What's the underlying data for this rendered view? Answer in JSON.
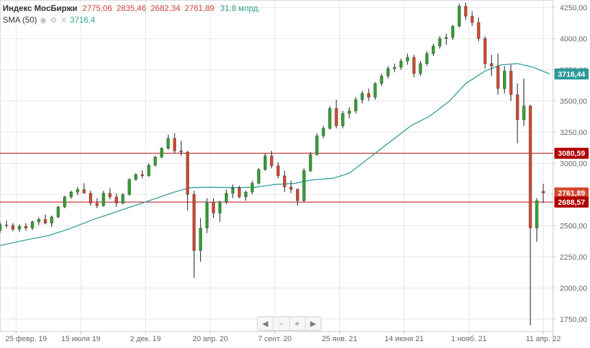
{
  "legend": {
    "title": "Индекс МосБиржи",
    "open": "2775,06",
    "high": "2835,46",
    "low": "2682,34",
    "close": "2761,89",
    "volume": "31,8 млрд.",
    "sma_label": "SMA (50)",
    "sma_value": "3716,4",
    "tool_icons": [
      "eye-icon",
      "gear-icon",
      "close-icon"
    ]
  },
  "navigator": {
    "buttons": [
      {
        "name": "scroll-left-button",
        "glyph": "◀"
      },
      {
        "name": "zoom-out-button",
        "glyph": "–"
      },
      {
        "name": "zoom-in-button",
        "glyph": "+"
      },
      {
        "name": "scroll-right-button",
        "glyph": "▶"
      }
    ]
  },
  "colors": {
    "up": "#30a030",
    "down": "#d0492f",
    "sma": "#2e9a98",
    "level": "#b00000",
    "grid": "#e6e6e6",
    "axis_text": "#666666"
  },
  "chart_data": {
    "type": "candlestick",
    "title": "Индекс МосБиржи",
    "ylim": [
      1650,
      4310
    ],
    "y_ticks": [
      1750,
      2000,
      2250,
      2500,
      2750,
      3000,
      3250,
      3500,
      3750,
      4000,
      4250
    ],
    "y_tick_labels": [
      "1750,00",
      "2000,00",
      "2250,00",
      "2500,00",
      "2750,00",
      "3000,00",
      "3250,00",
      "3500,00",
      "3750,00",
      "4000,00",
      "4250,00"
    ],
    "x_ticks": [
      "2019-02-25",
      "2019-07-15",
      "2019-12-02",
      "2020-04-20",
      "2020-09-07",
      "2021-01-25",
      "2021-06-14",
      "2021-11-01",
      "2022-04-11"
    ],
    "x_tick_labels": [
      "25 февр. 19",
      "15 июля 19",
      "2 дек. 19",
      "20 апр. 20",
      "7 сент. 20",
      "25 янв. 21",
      "14 июня 21",
      "1 нояб. 21",
      "11 апр. 22"
    ],
    "price_badges": [
      {
        "label": "3716,44",
        "value": 3716.44,
        "color": "#2e9a98"
      },
      {
        "label": "3080,59",
        "value": 3080.59,
        "color": "#b00000"
      },
      {
        "label": "2761,89",
        "value": 2761.89,
        "color": "#d0492f"
      },
      {
        "label": "2688,57",
        "value": 2688.57,
        "color": "#b00000"
      }
    ],
    "horizontal_levels": [
      3080.59,
      2688.57
    ],
    "x_start": "2019-01-21",
    "x_end": "2022-05-02",
    "sma": [
      {
        "t": "2019-01-21",
        "v": 2340
      },
      {
        "t": "2019-03-11",
        "v": 2380
      },
      {
        "t": "2019-05-06",
        "v": 2420
      },
      {
        "t": "2019-06-17",
        "v": 2470
      },
      {
        "t": "2019-08-12",
        "v": 2550
      },
      {
        "t": "2019-10-07",
        "v": 2620
      },
      {
        "t": "2019-12-02",
        "v": 2690
      },
      {
        "t": "2020-02-03",
        "v": 2770
      },
      {
        "t": "2020-03-09",
        "v": 2805
      },
      {
        "t": "2020-04-20",
        "v": 2808
      },
      {
        "t": "2020-06-08",
        "v": 2805
      },
      {
        "t": "2020-07-27",
        "v": 2808
      },
      {
        "t": "2020-09-07",
        "v": 2830
      },
      {
        "t": "2020-10-19",
        "v": 2838
      },
      {
        "t": "2020-11-23",
        "v": 2865
      },
      {
        "t": "2021-01-11",
        "v": 2880
      },
      {
        "t": "2021-02-15",
        "v": 2920
      },
      {
        "t": "2021-03-29",
        "v": 3040
      },
      {
        "t": "2021-05-10",
        "v": 3160
      },
      {
        "t": "2021-06-28",
        "v": 3300
      },
      {
        "t": "2021-08-09",
        "v": 3380
      },
      {
        "t": "2021-09-20",
        "v": 3500
      },
      {
        "t": "2021-10-25",
        "v": 3640
      },
      {
        "t": "2021-12-06",
        "v": 3740
      },
      {
        "t": "2022-01-10",
        "v": 3790
      },
      {
        "t": "2022-02-14",
        "v": 3800
      },
      {
        "t": "2022-03-21",
        "v": 3770
      },
      {
        "t": "2022-04-25",
        "v": 3716.44
      }
    ],
    "candles": [
      {
        "t": "2019-01-21",
        "o": 2460,
        "h": 2530,
        "l": 2440,
        "c": 2510
      },
      {
        "t": "2019-02-04",
        "o": 2505,
        "h": 2540,
        "l": 2480,
        "c": 2500
      },
      {
        "t": "2019-02-18",
        "o": 2500,
        "h": 2520,
        "l": 2455,
        "c": 2470
      },
      {
        "t": "2019-03-04",
        "o": 2470,
        "h": 2510,
        "l": 2450,
        "c": 2495
      },
      {
        "t": "2019-03-18",
        "o": 2495,
        "h": 2520,
        "l": 2460,
        "c": 2480
      },
      {
        "t": "2019-04-01",
        "o": 2480,
        "h": 2540,
        "l": 2465,
        "c": 2530
      },
      {
        "t": "2019-04-15",
        "o": 2530,
        "h": 2565,
        "l": 2505,
        "c": 2550
      },
      {
        "t": "2019-04-29",
        "o": 2550,
        "h": 2590,
        "l": 2510,
        "c": 2520
      },
      {
        "t": "2019-05-13",
        "o": 2520,
        "h": 2580,
        "l": 2490,
        "c": 2570
      },
      {
        "t": "2019-05-27",
        "o": 2570,
        "h": 2660,
        "l": 2560,
        "c": 2650
      },
      {
        "t": "2019-06-10",
        "o": 2650,
        "h": 2740,
        "l": 2640,
        "c": 2730
      },
      {
        "t": "2019-06-24",
        "o": 2730,
        "h": 2780,
        "l": 2715,
        "c": 2770
      },
      {
        "t": "2019-07-08",
        "o": 2770,
        "h": 2810,
        "l": 2745,
        "c": 2790
      },
      {
        "t": "2019-07-22",
        "o": 2790,
        "h": 2840,
        "l": 2770,
        "c": 2760
      },
      {
        "t": "2019-08-05",
        "o": 2760,
        "h": 2780,
        "l": 2660,
        "c": 2680
      },
      {
        "t": "2019-08-19",
        "o": 2680,
        "h": 2720,
        "l": 2640,
        "c": 2660
      },
      {
        "t": "2019-09-02",
        "o": 2660,
        "h": 2780,
        "l": 2650,
        "c": 2760
      },
      {
        "t": "2019-09-16",
        "o": 2760,
        "h": 2800,
        "l": 2710,
        "c": 2730
      },
      {
        "t": "2019-09-30",
        "o": 2730,
        "h": 2760,
        "l": 2650,
        "c": 2680
      },
      {
        "t": "2019-10-14",
        "o": 2680,
        "h": 2760,
        "l": 2670,
        "c": 2750
      },
      {
        "t": "2019-10-28",
        "o": 2750,
        "h": 2880,
        "l": 2740,
        "c": 2870
      },
      {
        "t": "2019-11-11",
        "o": 2870,
        "h": 2920,
        "l": 2860,
        "c": 2910
      },
      {
        "t": "2019-11-25",
        "o": 2910,
        "h": 2945,
        "l": 2880,
        "c": 2900
      },
      {
        "t": "2019-12-09",
        "o": 2900,
        "h": 3000,
        "l": 2890,
        "c": 2985
      },
      {
        "t": "2019-12-23",
        "o": 2985,
        "h": 3060,
        "l": 2975,
        "c": 3050
      },
      {
        "t": "2020-01-06",
        "o": 3050,
        "h": 3130,
        "l": 3040,
        "c": 3120
      },
      {
        "t": "2020-01-20",
        "o": 3120,
        "h": 3230,
        "l": 3110,
        "c": 3200
      },
      {
        "t": "2020-02-03",
        "o": 3200,
        "h": 3240,
        "l": 3080,
        "c": 3100
      },
      {
        "t": "2020-02-17",
        "o": 3100,
        "h": 3180,
        "l": 3060,
        "c": 3090
      },
      {
        "t": "2020-03-02",
        "o": 3090,
        "h": 3100,
        "l": 2620,
        "c": 2750
      },
      {
        "t": "2020-03-16",
        "o": 2750,
        "h": 2780,
        "l": 2080,
        "c": 2300
      },
      {
        "t": "2020-03-30",
        "o": 2300,
        "h": 2560,
        "l": 2210,
        "c": 2480
      },
      {
        "t": "2020-04-13",
        "o": 2480,
        "h": 2720,
        "l": 2440,
        "c": 2690
      },
      {
        "t": "2020-04-27",
        "o": 2690,
        "h": 2720,
        "l": 2560,
        "c": 2600
      },
      {
        "t": "2020-05-11",
        "o": 2600,
        "h": 2700,
        "l": 2530,
        "c": 2690
      },
      {
        "t": "2020-05-25",
        "o": 2690,
        "h": 2790,
        "l": 2670,
        "c": 2760
      },
      {
        "t": "2020-06-08",
        "o": 2760,
        "h": 2830,
        "l": 2720,
        "c": 2800
      },
      {
        "t": "2020-06-22",
        "o": 2800,
        "h": 2820,
        "l": 2720,
        "c": 2730
      },
      {
        "t": "2020-07-06",
        "o": 2730,
        "h": 2780,
        "l": 2700,
        "c": 2770
      },
      {
        "t": "2020-07-20",
        "o": 2770,
        "h": 2860,
        "l": 2750,
        "c": 2840
      },
      {
        "t": "2020-08-03",
        "o": 2840,
        "h": 2960,
        "l": 2830,
        "c": 2950
      },
      {
        "t": "2020-08-17",
        "o": 2950,
        "h": 3080,
        "l": 2940,
        "c": 3060
      },
      {
        "t": "2020-08-31",
        "o": 3060,
        "h": 3100,
        "l": 2960,
        "c": 2980
      },
      {
        "t": "2020-09-14",
        "o": 2980,
        "h": 3010,
        "l": 2880,
        "c": 2900
      },
      {
        "t": "2020-09-28",
        "o": 2900,
        "h": 2940,
        "l": 2770,
        "c": 2810
      },
      {
        "t": "2020-10-12",
        "o": 2810,
        "h": 2860,
        "l": 2760,
        "c": 2790
      },
      {
        "t": "2020-10-26",
        "o": 2790,
        "h": 2800,
        "l": 2660,
        "c": 2700
      },
      {
        "t": "2020-11-09",
        "o": 2700,
        "h": 2960,
        "l": 2690,
        "c": 2940
      },
      {
        "t": "2020-11-23",
        "o": 2940,
        "h": 3090,
        "l": 2930,
        "c": 3070
      },
      {
        "t": "2020-12-07",
        "o": 3070,
        "h": 3240,
        "l": 3060,
        "c": 3220
      },
      {
        "t": "2020-12-21",
        "o": 3220,
        "h": 3300,
        "l": 3200,
        "c": 3280
      },
      {
        "t": "2021-01-04",
        "o": 3280,
        "h": 3460,
        "l": 3270,
        "c": 3440
      },
      {
        "t": "2021-01-18",
        "o": 3440,
        "h": 3510,
        "l": 3280,
        "c": 3300
      },
      {
        "t": "2021-02-01",
        "o": 3300,
        "h": 3420,
        "l": 3280,
        "c": 3400
      },
      {
        "t": "2021-02-15",
        "o": 3400,
        "h": 3450,
        "l": 3360,
        "c": 3420
      },
      {
        "t": "2021-03-01",
        "o": 3420,
        "h": 3530,
        "l": 3400,
        "c": 3510
      },
      {
        "t": "2021-03-15",
        "o": 3510,
        "h": 3580,
        "l": 3480,
        "c": 3560
      },
      {
        "t": "2021-03-29",
        "o": 3560,
        "h": 3600,
        "l": 3500,
        "c": 3530
      },
      {
        "t": "2021-04-12",
        "o": 3530,
        "h": 3650,
        "l": 3510,
        "c": 3640
      },
      {
        "t": "2021-04-26",
        "o": 3640,
        "h": 3720,
        "l": 3620,
        "c": 3700
      },
      {
        "t": "2021-05-10",
        "o": 3700,
        "h": 3780,
        "l": 3680,
        "c": 3760
      },
      {
        "t": "2021-05-24",
        "o": 3760,
        "h": 3800,
        "l": 3730,
        "c": 3770
      },
      {
        "t": "2021-06-07",
        "o": 3770,
        "h": 3840,
        "l": 3750,
        "c": 3820
      },
      {
        "t": "2021-06-21",
        "o": 3820,
        "h": 3880,
        "l": 3790,
        "c": 3850
      },
      {
        "t": "2021-07-05",
        "o": 3850,
        "h": 3870,
        "l": 3690,
        "c": 3720
      },
      {
        "t": "2021-07-19",
        "o": 3720,
        "h": 3820,
        "l": 3700,
        "c": 3800
      },
      {
        "t": "2021-08-02",
        "o": 3800,
        "h": 3900,
        "l": 3780,
        "c": 3880
      },
      {
        "t": "2021-08-16",
        "o": 3880,
        "h": 3960,
        "l": 3860,
        "c": 3940
      },
      {
        "t": "2021-08-30",
        "o": 3940,
        "h": 4020,
        "l": 3920,
        "c": 4000
      },
      {
        "t": "2021-09-13",
        "o": 4000,
        "h": 4040,
        "l": 3950,
        "c": 4010
      },
      {
        "t": "2021-09-27",
        "o": 4010,
        "h": 4110,
        "l": 3990,
        "c": 4100
      },
      {
        "t": "2021-10-11",
        "o": 4100,
        "h": 4280,
        "l": 4090,
        "c": 4260
      },
      {
        "t": "2021-10-25",
        "o": 4260,
        "h": 4290,
        "l": 4150,
        "c": 4180
      },
      {
        "t": "2021-11-08",
        "o": 4180,
        "h": 4220,
        "l": 4100,
        "c": 4130
      },
      {
        "t": "2021-11-22",
        "o": 4130,
        "h": 4170,
        "l": 3980,
        "c": 4000
      },
      {
        "t": "2021-12-06",
        "o": 4000,
        "h": 4020,
        "l": 3760,
        "c": 3800
      },
      {
        "t": "2021-12-20",
        "o": 3800,
        "h": 3870,
        "l": 3700,
        "c": 3780
      },
      {
        "t": "2022-01-03",
        "o": 3780,
        "h": 3880,
        "l": 3550,
        "c": 3600
      },
      {
        "t": "2022-01-17",
        "o": 3600,
        "h": 3780,
        "l": 3560,
        "c": 3740
      },
      {
        "t": "2022-01-31",
        "o": 3740,
        "h": 3790,
        "l": 3500,
        "c": 3550
      },
      {
        "t": "2022-02-14",
        "o": 3550,
        "h": 3640,
        "l": 3160,
        "c": 3350
      },
      {
        "t": "2022-02-28",
        "o": 3350,
        "h": 3680,
        "l": 3300,
        "c": 3460
      },
      {
        "t": "2022-03-14",
        "o": 3460,
        "h": 3470,
        "l": 1700,
        "c": 2480
      },
      {
        "t": "2022-03-28",
        "o": 2480,
        "h": 2720,
        "l": 2370,
        "c": 2700
      },
      {
        "t": "2022-04-11",
        "o": 2775.06,
        "h": 2835.46,
        "l": 2682.34,
        "c": 2761.89
      }
    ]
  }
}
